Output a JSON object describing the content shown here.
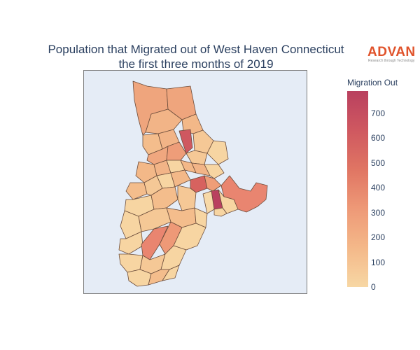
{
  "title": {
    "line1": "Population that Migrated out of West Haven Connecticut",
    "line2": "the first three months of 2019"
  },
  "logo": {
    "name": "ADVAN",
    "tagline": "Research through Technology",
    "color": "#e0532b"
  },
  "colorbar": {
    "title": "Migration Out",
    "min": 0,
    "max": 790,
    "ticks": [
      "0",
      "100",
      "200",
      "300",
      "400",
      "500",
      "600",
      "700"
    ],
    "tick_values": [
      0,
      100,
      200,
      300,
      400,
      500,
      600,
      700
    ],
    "colors": [
      "#f7d7a4",
      "#f4b889",
      "#ee9977",
      "#e07563",
      "#cf5860",
      "#b9405f"
    ]
  },
  "map": {
    "background": "#e5ecf6",
    "border_color": "#6b4c3b"
  }
}
